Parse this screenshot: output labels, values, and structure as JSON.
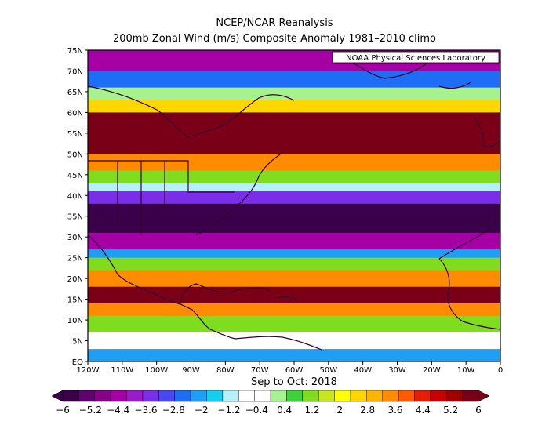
{
  "header": {
    "title": "NCEP/NCAR Reanalysis",
    "subtitle": "200mb Zonal Wind (m/s) Composite Anomaly 1981–2010 climo"
  },
  "credit": "NOAA Physical Sciences Laboratory",
  "period": "Sep to Oct: 2018",
  "map": {
    "lat_labels": [
      "75N",
      "70N",
      "65N",
      "60N",
      "55N",
      "50N",
      "45N",
      "40N",
      "35N",
      "30N",
      "25N",
      "20N",
      "15N",
      "10N",
      "5N",
      "EQ"
    ],
    "lon_labels": [
      "120W",
      "110W",
      "100W",
      "90W",
      "80W",
      "70W",
      "60W",
      "50W",
      "40W",
      "30W",
      "20W",
      "10W",
      "0"
    ],
    "extent": {
      "lon": [
        -120,
        0
      ],
      "lat": [
        0,
        75
      ]
    },
    "bands": [
      {
        "lat_from": 75,
        "lat_to": 70,
        "value": -4.4
      },
      {
        "lat_from": 70,
        "lat_to": 66,
        "value": -2.8
      },
      {
        "lat_from": 66,
        "lat_to": 63,
        "value": 0.4
      },
      {
        "lat_from": 63,
        "lat_to": 60,
        "value": 2.8
      },
      {
        "lat_from": 60,
        "lat_to": 50,
        "value": 6
      },
      {
        "lat_from": 50,
        "lat_to": 46,
        "value": 3.6
      },
      {
        "lat_from": 46,
        "lat_to": 43,
        "value": 1.2
      },
      {
        "lat_from": 43,
        "lat_to": 41,
        "value": -1.2
      },
      {
        "lat_from": 41,
        "lat_to": 38,
        "value": -3.6
      },
      {
        "lat_from": 38,
        "lat_to": 31,
        "value": -6
      },
      {
        "lat_from": 31,
        "lat_to": 27,
        "value": -4.4
      },
      {
        "lat_from": 27,
        "lat_to": 25,
        "value": -2
      },
      {
        "lat_from": 25,
        "lat_to": 22,
        "value": 1.2
      },
      {
        "lat_from": 22,
        "lat_to": 18,
        "value": 3.6
      },
      {
        "lat_from": 18,
        "lat_to": 14,
        "value": 6
      },
      {
        "lat_from": 14,
        "lat_to": 11,
        "value": 3.6
      },
      {
        "lat_from": 11,
        "lat_to": 7,
        "value": 1.2
      },
      {
        "lat_from": 7,
        "lat_to": 3,
        "value": -0.4
      },
      {
        "lat_from": 3,
        "lat_to": 0,
        "value": -2
      }
    ]
  },
  "colorbar": {
    "labels": [
      "−6",
      "−5.2",
      "−4.4",
      "−3.6",
      "−2.8",
      "−2",
      "−1.2",
      "−0.4",
      "0.4",
      "1.2",
      "2",
      "2.8",
      "3.6",
      "4.4",
      "5.2",
      "6"
    ],
    "colors": [
      "#3a0049",
      "#5f0070",
      "#86008a",
      "#a400a4",
      "#9a1bc9",
      "#7a2ee8",
      "#4848f0",
      "#1e6ef5",
      "#1e9ef5",
      "#14d0f0",
      "#b4f0f8",
      "#ffffff",
      "#ffffff",
      "#a6f28f",
      "#3cd23c",
      "#7fdc1e",
      "#c8e61e",
      "#ffff00",
      "#ffd700",
      "#ffb400",
      "#ff8c00",
      "#ff5a00",
      "#e61e00",
      "#c80000",
      "#a00000",
      "#7a0018"
    ]
  },
  "chart_data": {
    "type": "heatmap",
    "title": "200mb Zonal Wind (m/s) Composite Anomaly 1981–2010 climo",
    "x_range": [
      -120,
      0
    ],
    "y_range": [
      0,
      75
    ],
    "value_range": [
      -6,
      6
    ]
  }
}
